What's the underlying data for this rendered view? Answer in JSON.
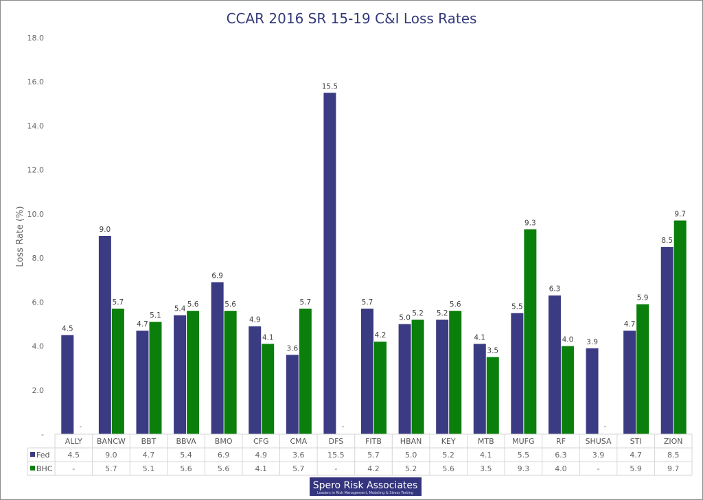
{
  "chart_data": {
    "type": "bar",
    "title": "CCAR 2016 SR 15-19 C&I Loss Rates",
    "xlabel": "",
    "ylabel": "Loss Rate (%)",
    "ylim": [
      0,
      18
    ],
    "yticks": [
      "-",
      "2.0",
      "4.0",
      "6.0",
      "8.0",
      "10.0",
      "12.0",
      "14.0",
      "16.0",
      "18.0"
    ],
    "grid": false,
    "legend": "data-table",
    "categories": [
      "ALLY",
      "BANCW",
      "BBT",
      "BBVA",
      "BMO",
      "CFG",
      "CMA",
      "DFS",
      "FITB",
      "HBAN",
      "KEY",
      "MTB",
      "MUFG",
      "RF",
      "SHUSA",
      "STI",
      "ZION"
    ],
    "series": [
      {
        "name": "Fed",
        "color": "#3b3b83",
        "values": [
          4.5,
          9.0,
          4.7,
          5.4,
          6.9,
          4.9,
          3.6,
          15.5,
          5.7,
          5.0,
          5.2,
          4.1,
          5.5,
          6.3,
          3.9,
          4.7,
          8.5
        ]
      },
      {
        "name": "BHC",
        "color": "#0b7f0b",
        "values": [
          null,
          5.7,
          5.1,
          5.6,
          5.6,
          4.1,
          5.7,
          null,
          4.2,
          5.2,
          5.6,
          3.5,
          9.3,
          4.0,
          null,
          5.9,
          9.7
        ]
      }
    ],
    "missing_label": "-"
  },
  "logo": {
    "name": "Spero Risk Associates",
    "tagline": "Leaders in Risk Management, Modeling & Stress Testing"
  },
  "colors": {
    "title": "#33397a",
    "text": "#555555",
    "grid": "#d9d9d9"
  }
}
